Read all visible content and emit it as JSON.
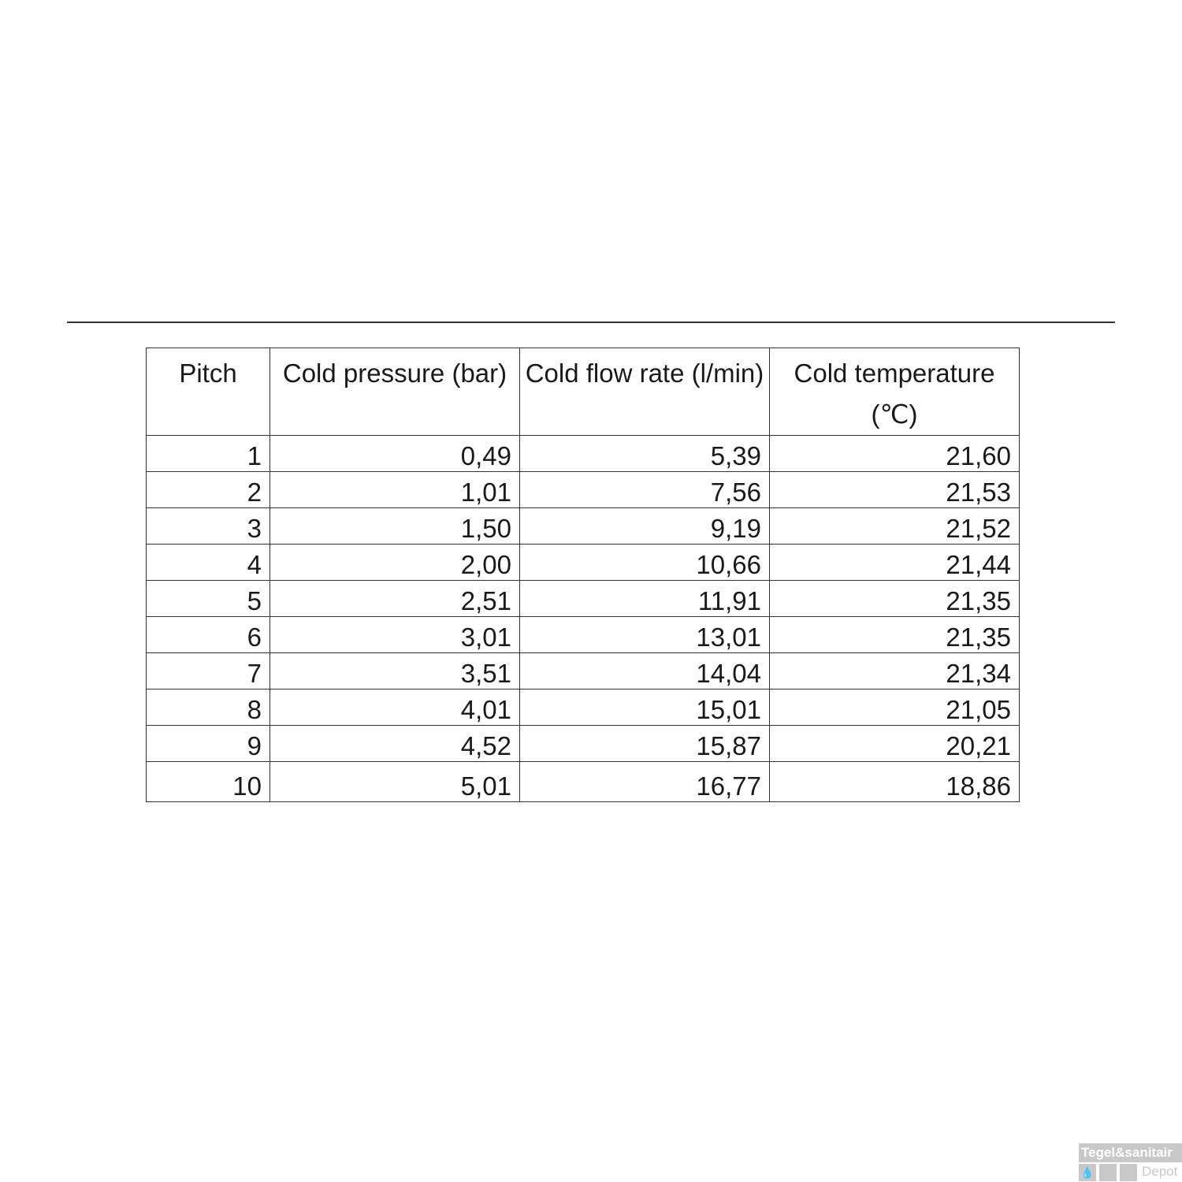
{
  "table": {
    "headers": [
      "Pitch",
      "Cold pressure (bar)",
      "Cold flow rate (l/min)",
      "Cold temperature (℃)"
    ],
    "rows": [
      [
        "1",
        "0,49",
        "5,39",
        "21,60"
      ],
      [
        "2",
        "1,01",
        "7,56",
        "21,53"
      ],
      [
        "3",
        "1,50",
        "9,19",
        "21,52"
      ],
      [
        "4",
        "2,00",
        "10,66",
        "21,44"
      ],
      [
        "5",
        "2,51",
        "11,91",
        "21,35"
      ],
      [
        "6",
        "3,01",
        "13,01",
        "21,35"
      ],
      [
        "7",
        "3,51",
        "14,04",
        "21,34"
      ],
      [
        "8",
        "4,01",
        "15,01",
        "21,05"
      ],
      [
        "9",
        "4,52",
        "15,87",
        "20,21"
      ],
      [
        "10",
        "5,01",
        "16,77",
        "18,86"
      ]
    ]
  },
  "watermark": {
    "line1": "Tegel&sanitair",
    "line2": "Depot",
    "icon": "water-drop-icon"
  }
}
